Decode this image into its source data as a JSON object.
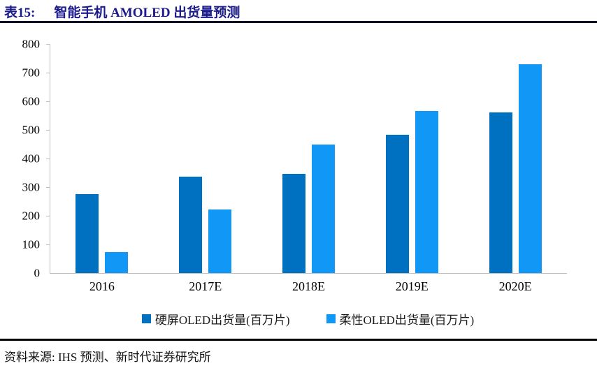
{
  "header": {
    "label": "表15:",
    "title": "智能手机 AMOLED 出货量预测"
  },
  "chart_data": {
    "type": "bar",
    "title": "智能手机 AMOLED 出货量预测",
    "categories": [
      "2016",
      "2017E",
      "2018E",
      "2019E",
      "2020E"
    ],
    "series": [
      {
        "name": "硬屏OLED出货量(百万片)",
        "color": "#0070C0",
        "values": [
          276,
          337,
          347,
          483,
          560
        ]
      },
      {
        "name": "柔性OLED出货量(百万片)",
        "color": "#1197F5",
        "values": [
          73,
          221,
          448,
          566,
          730
        ]
      }
    ],
    "xlabel": "",
    "ylabel": "",
    "ylim": [
      0,
      800
    ],
    "ytick_step": 100,
    "grid": false,
    "legend_position": "bottom"
  },
  "footer": {
    "source": "资料来源: IHS 预测、新时代证券研究所"
  }
}
